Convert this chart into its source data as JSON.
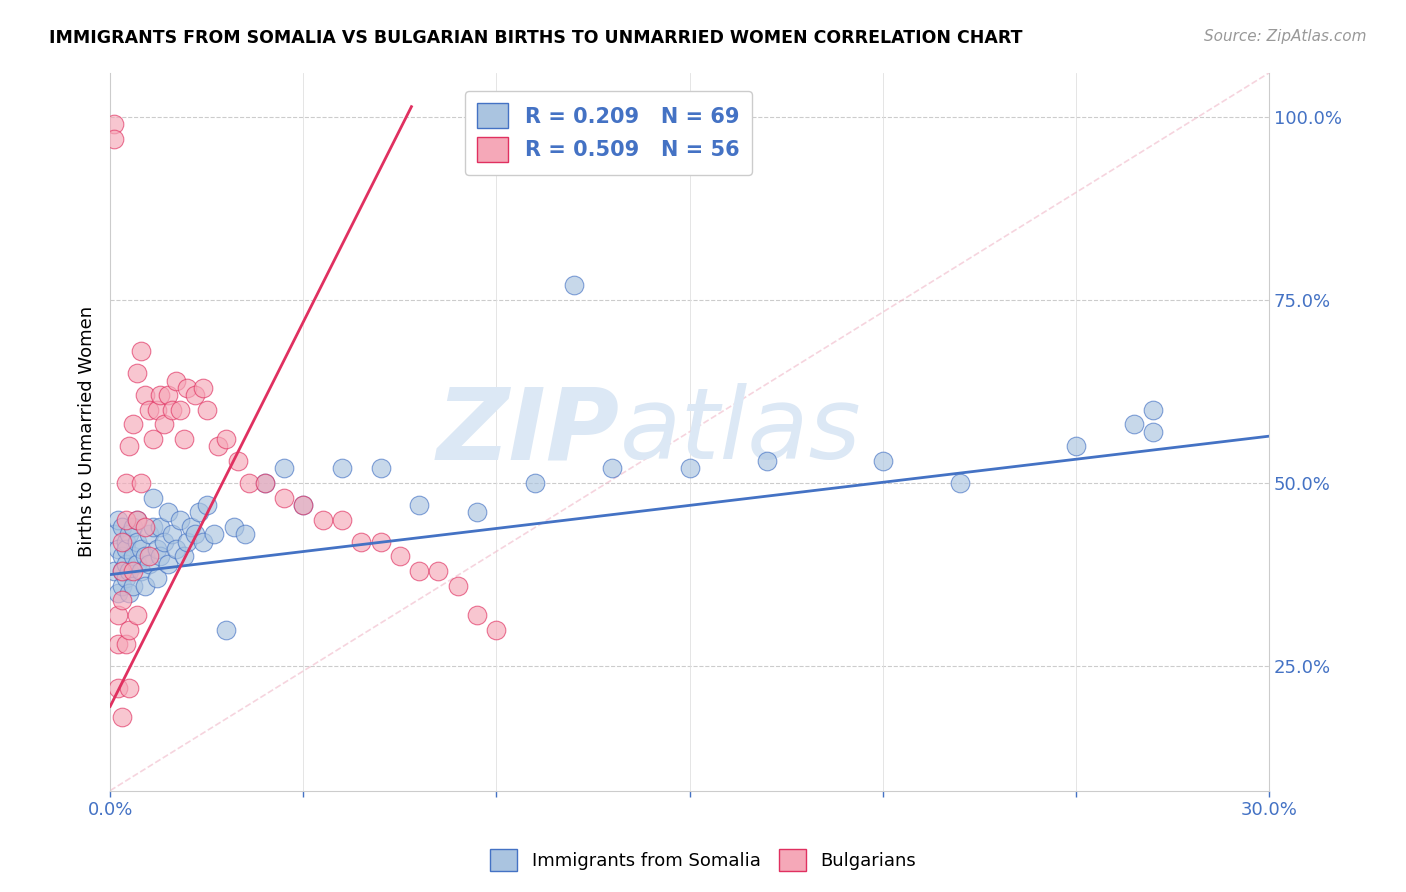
{
  "title": "IMMIGRANTS FROM SOMALIA VS BULGARIAN BIRTHS TO UNMARRIED WOMEN CORRELATION CHART",
  "source": "Source: ZipAtlas.com",
  "ylabel_label": "Births to Unmarried Women",
  "legend_label1": "Immigrants from Somalia",
  "legend_label2": "Bulgarians",
  "R1": 0.209,
  "N1": 69,
  "R2": 0.509,
  "N2": 56,
  "color1": "#aac4e0",
  "color2": "#f5a8b8",
  "trendline1_color": "#4472c4",
  "trendline2_color": "#e03060",
  "watermark_color": "#dce8f5",
  "xlim": [
    0.0,
    0.3
  ],
  "ylim": [
    0.08,
    1.06
  ],
  "blue_intercept": 0.375,
  "blue_slope": 0.63,
  "pink_intercept": 0.195,
  "pink_slope": 10.5,
  "pink_trend_xmax": 0.078,
  "blue_x": [
    0.001,
    0.001,
    0.002,
    0.002,
    0.002,
    0.003,
    0.003,
    0.003,
    0.003,
    0.004,
    0.004,
    0.004,
    0.004,
    0.005,
    0.005,
    0.005,
    0.006,
    0.006,
    0.006,
    0.007,
    0.007,
    0.007,
    0.008,
    0.008,
    0.009,
    0.009,
    0.01,
    0.01,
    0.011,
    0.011,
    0.012,
    0.012,
    0.013,
    0.013,
    0.014,
    0.015,
    0.015,
    0.016,
    0.017,
    0.018,
    0.019,
    0.02,
    0.021,
    0.022,
    0.023,
    0.024,
    0.025,
    0.027,
    0.03,
    0.032,
    0.035,
    0.04,
    0.045,
    0.05,
    0.06,
    0.07,
    0.08,
    0.095,
    0.11,
    0.13,
    0.15,
    0.17,
    0.2,
    0.22,
    0.25,
    0.265,
    0.27,
    0.27,
    0.12
  ],
  "blue_y": [
    0.38,
    0.43,
    0.35,
    0.41,
    0.45,
    0.36,
    0.4,
    0.38,
    0.44,
    0.37,
    0.42,
    0.39,
    0.41,
    0.35,
    0.43,
    0.38,
    0.44,
    0.4,
    0.36,
    0.42,
    0.39,
    0.45,
    0.38,
    0.41,
    0.4,
    0.36,
    0.43,
    0.39,
    0.48,
    0.44,
    0.37,
    0.41,
    0.4,
    0.44,
    0.42,
    0.39,
    0.46,
    0.43,
    0.41,
    0.45,
    0.4,
    0.42,
    0.44,
    0.43,
    0.46,
    0.42,
    0.47,
    0.43,
    0.3,
    0.44,
    0.43,
    0.5,
    0.52,
    0.47,
    0.52,
    0.52,
    0.47,
    0.46,
    0.5,
    0.52,
    0.52,
    0.53,
    0.53,
    0.5,
    0.55,
    0.58,
    0.6,
    0.57,
    0.77
  ],
  "pink_x": [
    0.001,
    0.001,
    0.002,
    0.002,
    0.002,
    0.003,
    0.003,
    0.003,
    0.003,
    0.004,
    0.004,
    0.004,
    0.005,
    0.005,
    0.005,
    0.006,
    0.006,
    0.007,
    0.007,
    0.007,
    0.008,
    0.008,
    0.009,
    0.009,
    0.01,
    0.01,
    0.011,
    0.012,
    0.013,
    0.014,
    0.015,
    0.016,
    0.017,
    0.018,
    0.019,
    0.02,
    0.022,
    0.024,
    0.025,
    0.028,
    0.03,
    0.033,
    0.036,
    0.04,
    0.045,
    0.05,
    0.055,
    0.06,
    0.065,
    0.07,
    0.075,
    0.08,
    0.085,
    0.09,
    0.095,
    0.1
  ],
  "pink_y": [
    0.99,
    0.97,
    0.32,
    0.28,
    0.22,
    0.42,
    0.38,
    0.34,
    0.18,
    0.5,
    0.45,
    0.28,
    0.55,
    0.3,
    0.22,
    0.58,
    0.38,
    0.65,
    0.45,
    0.32,
    0.68,
    0.5,
    0.62,
    0.44,
    0.6,
    0.4,
    0.56,
    0.6,
    0.62,
    0.58,
    0.62,
    0.6,
    0.64,
    0.6,
    0.56,
    0.63,
    0.62,
    0.63,
    0.6,
    0.55,
    0.56,
    0.53,
    0.5,
    0.5,
    0.48,
    0.47,
    0.45,
    0.45,
    0.42,
    0.42,
    0.4,
    0.38,
    0.38,
    0.36,
    0.32,
    0.3
  ]
}
